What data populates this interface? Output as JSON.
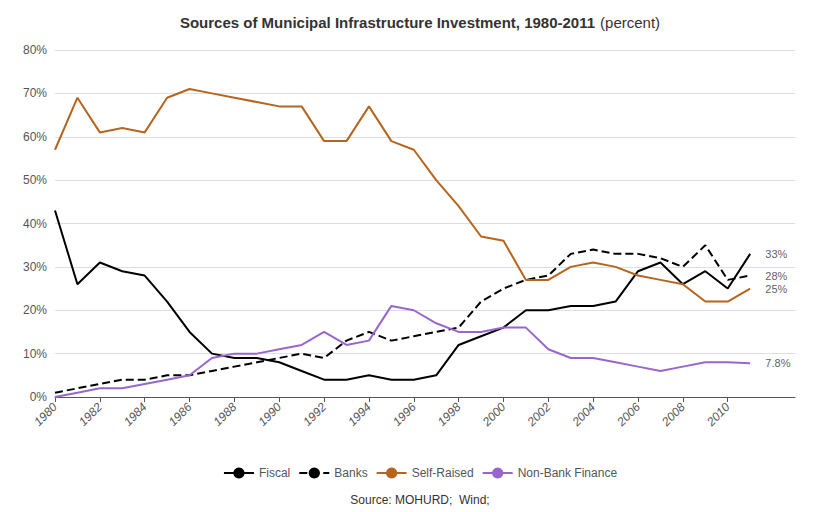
{
  "chart_data": {
    "type": "line",
    "title": "Sources of Municipal Infrastructure Investment, 1980-2011",
    "subtitle": "(percent)",
    "source": "Source: MOHURD;  Wind;",
    "x": [
      1980,
      1981,
      1982,
      1983,
      1984,
      1985,
      1986,
      1987,
      1988,
      1989,
      1990,
      1991,
      1992,
      1993,
      1994,
      1995,
      1996,
      1997,
      1998,
      1999,
      2000,
      2001,
      2002,
      2003,
      2004,
      2005,
      2006,
      2007,
      2008,
      2009,
      2010,
      2011
    ],
    "series": [
      {
        "name": "Fiscal",
        "color": "#000000",
        "line_style": "solid",
        "values": [
          43,
          26,
          31,
          29,
          28,
          22,
          15,
          10,
          9,
          9,
          8,
          6,
          4,
          4,
          5,
          4,
          4,
          5,
          12,
          14,
          16,
          20,
          20,
          21,
          21,
          22,
          29,
          31,
          26,
          29,
          25,
          33
        ]
      },
      {
        "name": "Banks",
        "color": "#000000",
        "line_style": "dashed",
        "values": [
          1,
          2,
          3,
          4,
          4,
          5,
          5,
          6,
          7,
          8,
          9,
          10,
          9,
          13,
          15,
          13,
          14,
          15,
          16,
          22,
          25,
          27,
          28,
          33,
          34,
          33,
          33,
          32,
          30,
          35,
          27,
          28
        ]
      },
      {
        "name": "Self-Raised",
        "color": "#b5651d",
        "line_style": "solid",
        "values": [
          57,
          69,
          61,
          62,
          61,
          69,
          71,
          70,
          69,
          68,
          67,
          67,
          59,
          59,
          67,
          59,
          57,
          50,
          44,
          37,
          36,
          27,
          27,
          30,
          31,
          30,
          28,
          27,
          26,
          22,
          22,
          25
        ]
      },
      {
        "name": "Non-Bank Finance",
        "color": "#9966cc",
        "line_style": "solid",
        "values": [
          0,
          1,
          2,
          2,
          3,
          4,
          5,
          9,
          10,
          10,
          11,
          12,
          15,
          12,
          13,
          21,
          20,
          17,
          15,
          15,
          16,
          16,
          11,
          9,
          9,
          8,
          7,
          6,
          7,
          8,
          8,
          7.8
        ]
      }
    ],
    "xlim": [
      1980,
      2013
    ],
    "xticks": [
      1980,
      1982,
      1984,
      1986,
      1988,
      1990,
      1992,
      1994,
      1996,
      1998,
      2000,
      2002,
      2004,
      2006,
      2008,
      2010
    ],
    "ylim": [
      0,
      80
    ],
    "yticks": [
      {
        "value": 0,
        "label": "0%"
      },
      {
        "value": 10,
        "label": "10%"
      },
      {
        "value": 20,
        "label": "20%"
      },
      {
        "value": 30,
        "label": "30%"
      },
      {
        "value": 40,
        "label": "40%"
      },
      {
        "value": 50,
        "label": "50%"
      },
      {
        "value": 60,
        "label": "60%"
      },
      {
        "value": 70,
        "label": "70%"
      },
      {
        "value": 80,
        "label": "80%"
      }
    ],
    "grid": true,
    "legend": "bottom",
    "annotations": [
      {
        "text": "33%",
        "x": 2011.5,
        "y": 33
      },
      {
        "text": "28%",
        "x": 2011.5,
        "y": 28
      },
      {
        "text": "25%",
        "x": 2011.5,
        "y": 25
      },
      {
        "text": "7.8%",
        "x": 2011.5,
        "y": 7.8
      }
    ]
  }
}
